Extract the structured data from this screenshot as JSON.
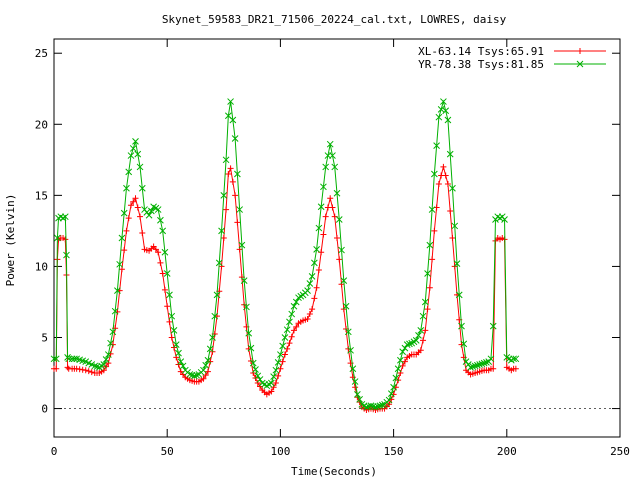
{
  "chart_data": {
    "type": "line",
    "title": "Skynet_59583_DR21_71506_20224_cal.txt, LOWRES, daisy",
    "xlabel": "Time(Seconds)",
    "ylabel": "Power (Kelvin)",
    "xlim": [
      0,
      250
    ],
    "ylim": [
      -2,
      26
    ],
    "xticks": [
      0,
      50,
      100,
      150,
      200,
      250
    ],
    "yticks": [
      0,
      5,
      10,
      15,
      20,
      25
    ],
    "grid": false,
    "legend_position": "top-right",
    "series": [
      {
        "name": "XL-63.14 Tsys:65.91",
        "color": "#ff0000",
        "marker": "plus",
        "x": [
          0,
          1,
          1.5,
          2,
          3,
          4,
          5,
          5.5,
          6,
          6.5,
          8,
          10,
          14,
          18,
          20,
          22,
          24,
          26,
          28,
          30,
          32,
          34,
          36,
          38,
          40,
          42,
          44,
          46,
          48,
          50,
          52,
          54,
          56,
          58,
          60,
          62,
          64,
          66,
          68,
          70,
          72,
          74,
          76,
          77,
          78,
          80,
          82,
          84,
          86,
          88,
          90,
          92,
          94,
          96,
          98,
          100,
          102,
          104,
          106,
          108,
          110,
          112,
          114,
          116,
          118,
          120,
          122,
          124,
          126,
          128,
          130,
          132,
          134,
          136,
          138,
          140,
          142,
          144,
          146,
          148,
          150,
          152,
          154,
          156,
          158,
          160,
          162,
          164,
          166,
          168,
          170,
          172,
          174,
          176,
          178,
          180,
          182,
          184,
          186,
          188,
          190,
          192,
          193,
          194,
          195,
          196,
          197,
          198,
          199,
          200,
          201,
          202,
          203,
          204
        ],
        "y": [
          2.8,
          2.8,
          10.5,
          11.9,
          12.0,
          12.0,
          11.9,
          9.4,
          2.9,
          2.8,
          2.8,
          2.8,
          2.7,
          2.5,
          2.5,
          2.7,
          3.2,
          4.5,
          6.8,
          9.8,
          12.5,
          14.3,
          14.8,
          13.5,
          11.2,
          11.1,
          11.4,
          11.0,
          9.5,
          7.2,
          5.0,
          3.6,
          2.6,
          2.2,
          2.0,
          1.9,
          1.9,
          2.1,
          2.6,
          4.0,
          6.5,
          10.0,
          14.0,
          16.5,
          16.9,
          15.0,
          11.2,
          7.3,
          4.2,
          2.5,
          1.8,
          1.3,
          1.0,
          1.2,
          1.8,
          2.8,
          3.8,
          4.6,
          5.5,
          6.0,
          6.2,
          6.3,
          7.0,
          8.5,
          11.0,
          13.5,
          14.8,
          13.5,
          10.5,
          7.0,
          4.2,
          2.2,
          0.8,
          0.1,
          -0.1,
          0.0,
          -0.1,
          0.0,
          0.0,
          0.3,
          1.0,
          2.0,
          3.0,
          3.6,
          3.8,
          3.8,
          4.1,
          5.5,
          8.5,
          12.5,
          15.8,
          17.0,
          15.8,
          12.0,
          8.0,
          4.5,
          2.7,
          2.4,
          2.5,
          2.6,
          2.7,
          2.7,
          2.8,
          2.8,
          11.8,
          12.0,
          11.9,
          12.0,
          11.9,
          2.9,
          2.8,
          2.7,
          2.8,
          2.8
        ]
      },
      {
        "name": "YR-78.38 Tsys:81.85",
        "color": "#00b000",
        "marker": "cross",
        "x": [
          0,
          1,
          1.5,
          2,
          3,
          4,
          5,
          5.5,
          6,
          6.5,
          8,
          10,
          14,
          18,
          20,
          22,
          24,
          26,
          28,
          30,
          32,
          34,
          36,
          38,
          40,
          42,
          44,
          46,
          48,
          50,
          52,
          54,
          56,
          58,
          60,
          62,
          64,
          66,
          68,
          70,
          72,
          74,
          76,
          77,
          78,
          80,
          82,
          84,
          86,
          88,
          90,
          92,
          94,
          96,
          98,
          100,
          102,
          104,
          106,
          108,
          110,
          112,
          114,
          116,
          118,
          120,
          122,
          124,
          126,
          128,
          130,
          132,
          134,
          136,
          138,
          140,
          142,
          144,
          146,
          148,
          150,
          152,
          154,
          156,
          158,
          160,
          162,
          164,
          166,
          168,
          170,
          172,
          174,
          176,
          178,
          180,
          182,
          184,
          186,
          188,
          190,
          192,
          193,
          194,
          195,
          196,
          197,
          198,
          199,
          200,
          201,
          202,
          203,
          204
        ],
        "y": [
          3.5,
          3.5,
          12.0,
          13.4,
          13.5,
          13.4,
          13.5,
          10.8,
          3.6,
          3.5,
          3.5,
          3.5,
          3.3,
          3.0,
          2.9,
          3.1,
          3.8,
          5.4,
          8.3,
          12.0,
          15.5,
          17.8,
          18.8,
          17.0,
          14.0,
          13.6,
          14.2,
          14.0,
          12.5,
          9.5,
          6.5,
          4.5,
          3.3,
          2.7,
          2.4,
          2.3,
          2.4,
          2.7,
          3.4,
          5.0,
          8.0,
          12.5,
          17.5,
          20.6,
          21.6,
          19.0,
          14.0,
          9.0,
          5.3,
          3.2,
          2.3,
          1.8,
          1.6,
          1.8,
          2.7,
          3.8,
          5.0,
          6.1,
          7.2,
          7.8,
          8.0,
          8.3,
          9.3,
          11.2,
          14.2,
          17.0,
          18.6,
          17.0,
          13.3,
          9.0,
          5.4,
          2.8,
          1.0,
          0.3,
          0.1,
          0.2,
          0.1,
          0.2,
          0.3,
          0.6,
          1.5,
          2.8,
          4.0,
          4.5,
          4.6,
          4.8,
          5.5,
          7.5,
          11.5,
          16.5,
          20.5,
          21.6,
          20.3,
          15.5,
          10.2,
          5.8,
          3.3,
          2.9,
          3.0,
          3.1,
          3.2,
          3.3,
          3.5,
          5.8,
          13.3,
          13.5,
          13.4,
          13.5,
          13.3,
          3.6,
          3.5,
          3.4,
          3.5,
          3.5
        ]
      }
    ]
  }
}
